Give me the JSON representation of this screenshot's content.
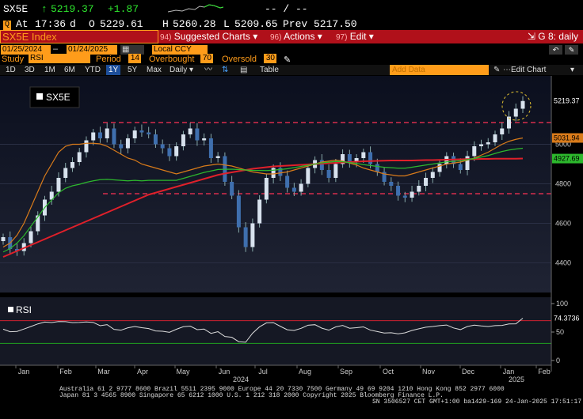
{
  "ticker": {
    "symbol": "SX5E",
    "arrow": "↑",
    "last": "5219.37",
    "change": "+1.87",
    "bid_ask": "-- / --",
    "at_label": "At",
    "time": "17:36",
    "time_suffix": "d",
    "open_label": "O",
    "open": "5229.61",
    "high_label": "H",
    "high": "5260.28",
    "low_label": "L",
    "low": "5209.65",
    "prev_label": "Prev",
    "prev": "5217.50"
  },
  "toolbar": {
    "index_label": "SX5E Index",
    "menus": [
      {
        "num": "94)",
        "label": "Suggested Charts ▾"
      },
      {
        "num": "96)",
        "label": "Actions ▾"
      },
      {
        "num": "97)",
        "label": "Edit ▾"
      }
    ],
    "window_label": "G 8: daily"
  },
  "range": {
    "start": "01/25/2024",
    "end": "01/24/2025",
    "currency": "Local CCY"
  },
  "study": {
    "label": "Study",
    "name": "RSI",
    "period_label": "Period",
    "period": "14",
    "overbought_label": "Overbought",
    "overbought": "70",
    "oversold_label": "Oversold",
    "oversold": "30"
  },
  "periods": {
    "items": [
      "1D",
      "3D",
      "1M",
      "6M",
      "YTD",
      "1Y",
      "5Y",
      "Max"
    ],
    "selected": "1Y",
    "frequency": "Daily ▾",
    "table_label": "Table",
    "add_data_placeholder": "Add Data",
    "edit_chart": "Edit Chart"
  },
  "chart_data": [
    {
      "type": "candlestick",
      "legend": "SX5E",
      "y_ticks": [
        "4400",
        "4600",
        "4800",
        "5000"
      ],
      "ylim": [
        4270,
        5330
      ],
      "x_ticks": [
        "Jan",
        "Feb",
        "Mar",
        "Apr",
        "May",
        "Jun",
        "Jul",
        "Aug",
        "Sep",
        "Oct",
        "Nov",
        "Dec",
        "Jan",
        "Feb"
      ],
      "year_labels": [
        "2024",
        "2025"
      ],
      "last_value": "5219.37",
      "ma_short_value": "5031.94",
      "ma_long_value": "4927.69",
      "horizontal_levels": [
        5110,
        4750
      ],
      "closes": [
        4530,
        4470,
        4460,
        4500,
        4560,
        4640,
        4720,
        4760,
        4830,
        4880,
        4910,
        4960,
        5020,
        5060,
        5030,
        5080,
        5000,
        4980,
        5030,
        5070,
        5060,
        5050,
        5000,
        4980,
        4940,
        4990,
        5050,
        5080,
        5020,
        5030,
        4930,
        4940,
        4810,
        4740,
        4580,
        4480,
        4600,
        4720,
        4830,
        4880,
        4840,
        4780,
        4760,
        4800,
        4880,
        4920,
        4870,
        4830,
        4900,
        4950,
        4910,
        4930,
        4960,
        4900,
        4860,
        4810,
        4790,
        4740,
        4730,
        4760,
        4790,
        4830,
        4860,
        4900,
        4940,
        4900,
        4870,
        4940,
        4990,
        5000,
        5010,
        5050,
        5080,
        5140,
        5180,
        5219
      ],
      "ma_short": [
        4480,
        4500,
        4540,
        4600,
        4680,
        4760,
        4840,
        4900,
        4960,
        4990,
        5000,
        5000,
        5005,
        5005,
        5002,
        4990,
        4970,
        4950,
        4930,
        4920,
        4900,
        4890,
        4880,
        4870,
        4860,
        4850,
        4860,
        4870,
        4880,
        4890,
        4895,
        4900,
        4895,
        4890,
        4880,
        4870,
        4860,
        4855,
        4850,
        4850,
        4855,
        4860,
        4870,
        4880,
        4890,
        4900,
        4910,
        4915,
        4920,
        4915,
        4905,
        4895,
        4880,
        4870,
        4860,
        4850,
        4845,
        4840,
        4840,
        4850,
        4860,
        4870,
        4880,
        4890,
        4900,
        4905,
        4910,
        4920,
        4930,
        4945,
        4960,
        4980,
        5000,
        5015,
        5025,
        5032
      ],
      "ma_long": [
        4430,
        4445,
        4460,
        4475,
        4490,
        4505,
        4520,
        4535,
        4550,
        4565,
        4580,
        4595,
        4610,
        4625,
        4640,
        4655,
        4670,
        4685,
        4700,
        4715,
        4730,
        4745,
        4755,
        4765,
        4775,
        4785,
        4795,
        4805,
        4815,
        4825,
        4835,
        4845,
        4852,
        4858,
        4864,
        4870,
        4876,
        4880,
        4884,
        4888,
        4890,
        4892,
        4894,
        4896,
        4898,
        4900,
        4902,
        4904,
        4906,
        4908,
        4910,
        4912,
        4914,
        4915,
        4916,
        4917,
        4918,
        4918,
        4918,
        4918,
        4919,
        4920,
        4920,
        4921,
        4922,
        4923,
        4924,
        4925,
        4925,
        4926,
        4926,
        4927,
        4927,
        4927,
        4927,
        4928
      ]
    },
    {
      "type": "line",
      "legend": "RSI",
      "y_ticks": [
        "0",
        "50",
        "100"
      ],
      "ylim": [
        0,
        100
      ],
      "last_value": "74.3736",
      "overbought": 70,
      "oversold": 30
    }
  ],
  "footer": {
    "line1": "Australia 61 2 9777 8600 Brazil 5511 2395 9000 Europe 44 20 7330 7500 Germany 49 69 9204 1210 Hong Kong 852 2977 6000",
    "line2": "Japan 81 3 4565 8900      Singapore 65 6212 1000        U.S. 1 212 318 2000           Copyright 2025 Bloomberg Finance L.P.",
    "line3": "SN 3506527 CET  GMT+1:00 ba1429-169 24-Jan-2025 17:51:17"
  }
}
